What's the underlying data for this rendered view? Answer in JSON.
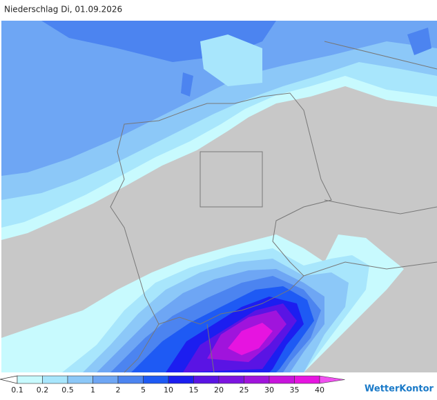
{
  "header": {
    "title": "Niederschlag Di, 01.09.2026"
  },
  "legend": {
    "ticks": [
      0.1,
      0.2,
      0.5,
      1,
      2,
      5,
      10,
      15,
      20,
      25,
      30,
      35,
      40
    ],
    "colors": [
      "#c8fafe",
      "#a8e6fc",
      "#8cc8f8",
      "#6ea6f4",
      "#4c84f0",
      "#1e5af4",
      "#1c1ef0",
      "#5a14e4",
      "#7c14e0",
      "#a014dc",
      "#c814dc",
      "#e614e0",
      "#f050f0"
    ]
  },
  "brand": "WetterKontor"
}
